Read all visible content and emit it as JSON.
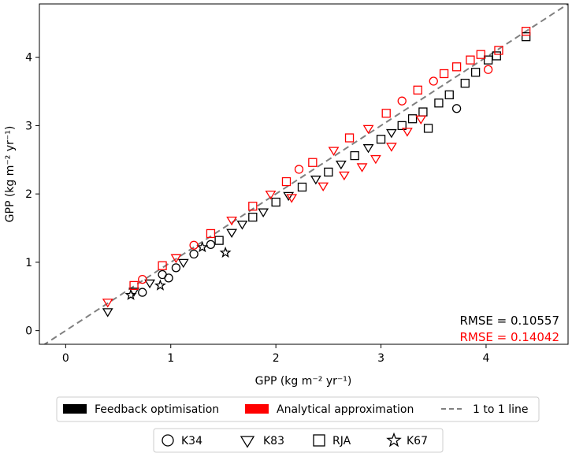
{
  "chart_data": {
    "type": "scatter",
    "xlabel": "GPP (kg m⁻² yr⁻¹)",
    "ylabel": "GPP (kg m⁻² yr⁻¹)",
    "xlim": [
      -0.25,
      4.78
    ],
    "ylim": [
      -0.2,
      4.78
    ],
    "x_ticks": [
      0,
      1,
      2,
      3,
      4
    ],
    "y_ticks": [
      0,
      1,
      2,
      3,
      4
    ],
    "grid": false,
    "series": [
      {
        "name": "Feedback optimisation",
        "color": "#000000",
        "points": [
          {
            "x": 0.4,
            "y": 0.28,
            "m": "triangle"
          },
          {
            "x": 0.62,
            "y": 0.52,
            "m": "star"
          },
          {
            "x": 0.65,
            "y": 0.58,
            "m": "triangle"
          },
          {
            "x": 0.73,
            "y": 0.56,
            "m": "circle"
          },
          {
            "x": 0.8,
            "y": 0.7,
            "m": "triangle"
          },
          {
            "x": 0.9,
            "y": 0.66,
            "m": "star"
          },
          {
            "x": 0.92,
            "y": 0.82,
            "m": "circle"
          },
          {
            "x": 0.98,
            "y": 0.77,
            "m": "circle"
          },
          {
            "x": 1.05,
            "y": 0.92,
            "m": "circle"
          },
          {
            "x": 1.12,
            "y": 1.0,
            "m": "triangle"
          },
          {
            "x": 1.22,
            "y": 1.12,
            "m": "circle"
          },
          {
            "x": 1.3,
            "y": 1.22,
            "m": "star"
          },
          {
            "x": 1.38,
            "y": 1.26,
            "m": "circle"
          },
          {
            "x": 1.46,
            "y": 1.32,
            "m": "square"
          },
          {
            "x": 1.52,
            "y": 1.14,
            "m": "star"
          },
          {
            "x": 1.58,
            "y": 1.44,
            "m": "triangle"
          },
          {
            "x": 1.68,
            "y": 1.56,
            "m": "triangle"
          },
          {
            "x": 1.78,
            "y": 1.66,
            "m": "square"
          },
          {
            "x": 1.88,
            "y": 1.74,
            "m": "triangle"
          },
          {
            "x": 2.0,
            "y": 1.88,
            "m": "square"
          },
          {
            "x": 2.12,
            "y": 1.98,
            "m": "triangle"
          },
          {
            "x": 2.25,
            "y": 2.1,
            "m": "square"
          },
          {
            "x": 2.38,
            "y": 2.22,
            "m": "triangle"
          },
          {
            "x": 2.5,
            "y": 2.32,
            "m": "square"
          },
          {
            "x": 2.62,
            "y": 2.44,
            "m": "triangle"
          },
          {
            "x": 2.75,
            "y": 2.56,
            "m": "square"
          },
          {
            "x": 2.88,
            "y": 2.68,
            "m": "triangle"
          },
          {
            "x": 3.0,
            "y": 2.8,
            "m": "square"
          },
          {
            "x": 3.1,
            "y": 2.9,
            "m": "triangle"
          },
          {
            "x": 3.2,
            "y": 3.0,
            "m": "square"
          },
          {
            "x": 3.3,
            "y": 3.1,
            "m": "square"
          },
          {
            "x": 3.4,
            "y": 3.2,
            "m": "square"
          },
          {
            "x": 3.45,
            "y": 2.96,
            "m": "square"
          },
          {
            "x": 3.55,
            "y": 3.33,
            "m": "square"
          },
          {
            "x": 3.65,
            "y": 3.45,
            "m": "square"
          },
          {
            "x": 3.72,
            "y": 3.25,
            "m": "circle"
          },
          {
            "x": 3.8,
            "y": 3.62,
            "m": "square"
          },
          {
            "x": 3.9,
            "y": 3.78,
            "m": "square"
          },
          {
            "x": 4.02,
            "y": 3.96,
            "m": "square"
          },
          {
            "x": 4.1,
            "y": 4.02,
            "m": "square"
          },
          {
            "x": 4.38,
            "y": 4.3,
            "m": "square"
          }
        ]
      },
      {
        "name": "Analytical approximation",
        "color": "#ff0000",
        "points": [
          {
            "x": 0.4,
            "y": 0.42,
            "m": "triangle"
          },
          {
            "x": 0.65,
            "y": 0.66,
            "m": "square"
          },
          {
            "x": 0.73,
            "y": 0.75,
            "m": "circle"
          },
          {
            "x": 0.92,
            "y": 0.95,
            "m": "square"
          },
          {
            "x": 1.05,
            "y": 1.07,
            "m": "triangle"
          },
          {
            "x": 1.22,
            "y": 1.25,
            "m": "circle"
          },
          {
            "x": 1.38,
            "y": 1.42,
            "m": "square"
          },
          {
            "x": 1.58,
            "y": 1.62,
            "m": "triangle"
          },
          {
            "x": 1.78,
            "y": 1.82,
            "m": "square"
          },
          {
            "x": 1.95,
            "y": 2.0,
            "m": "triangle"
          },
          {
            "x": 2.1,
            "y": 2.18,
            "m": "square"
          },
          {
            "x": 2.15,
            "y": 1.95,
            "m": "triangle"
          },
          {
            "x": 2.22,
            "y": 2.36,
            "m": "circle"
          },
          {
            "x": 2.35,
            "y": 2.46,
            "m": "square"
          },
          {
            "x": 2.45,
            "y": 2.12,
            "m": "triangle"
          },
          {
            "x": 2.55,
            "y": 2.64,
            "m": "triangle"
          },
          {
            "x": 2.65,
            "y": 2.28,
            "m": "triangle"
          },
          {
            "x": 2.7,
            "y": 2.82,
            "m": "square"
          },
          {
            "x": 2.82,
            "y": 2.4,
            "m": "triangle"
          },
          {
            "x": 2.88,
            "y": 2.96,
            "m": "triangle"
          },
          {
            "x": 2.95,
            "y": 2.52,
            "m": "triangle"
          },
          {
            "x": 3.05,
            "y": 3.18,
            "m": "square"
          },
          {
            "x": 3.1,
            "y": 2.7,
            "m": "triangle"
          },
          {
            "x": 3.2,
            "y": 3.36,
            "m": "circle"
          },
          {
            "x": 3.25,
            "y": 2.92,
            "m": "triangle"
          },
          {
            "x": 3.35,
            "y": 3.52,
            "m": "square"
          },
          {
            "x": 3.38,
            "y": 3.1,
            "m": "triangle"
          },
          {
            "x": 3.5,
            "y": 3.65,
            "m": "circle"
          },
          {
            "x": 3.6,
            "y": 3.76,
            "m": "square"
          },
          {
            "x": 3.72,
            "y": 3.86,
            "m": "square"
          },
          {
            "x": 3.85,
            "y": 3.96,
            "m": "square"
          },
          {
            "x": 3.95,
            "y": 4.04,
            "m": "square"
          },
          {
            "x": 4.02,
            "y": 3.82,
            "m": "circle"
          },
          {
            "x": 4.12,
            "y": 4.1,
            "m": "square"
          },
          {
            "x": 4.38,
            "y": 4.38,
            "m": "square"
          }
        ]
      }
    ],
    "reference_line": {
      "name": "1 to 1 line",
      "color": "#808080",
      "style": "dashed"
    },
    "annotations": [
      {
        "text": "RMSE = 0.10557",
        "color": "#000000"
      },
      {
        "text": "RMSE = 0.14042",
        "color": "#ff0000"
      }
    ],
    "legend_series": [
      {
        "label": "Feedback optimisation",
        "color": "#000000",
        "kind": "patch"
      },
      {
        "label": "Analytical approximation",
        "color": "#ff0000",
        "kind": "patch"
      },
      {
        "label": "1 to 1 line",
        "color": "#808080",
        "kind": "dashed-line"
      }
    ],
    "legend_sites": [
      {
        "label": "K34",
        "marker": "circle"
      },
      {
        "label": "K83",
        "marker": "triangle"
      },
      {
        "label": "RJA",
        "marker": "square"
      },
      {
        "label": "K67",
        "marker": "star"
      }
    ],
    "legend_placement": "bottom"
  }
}
